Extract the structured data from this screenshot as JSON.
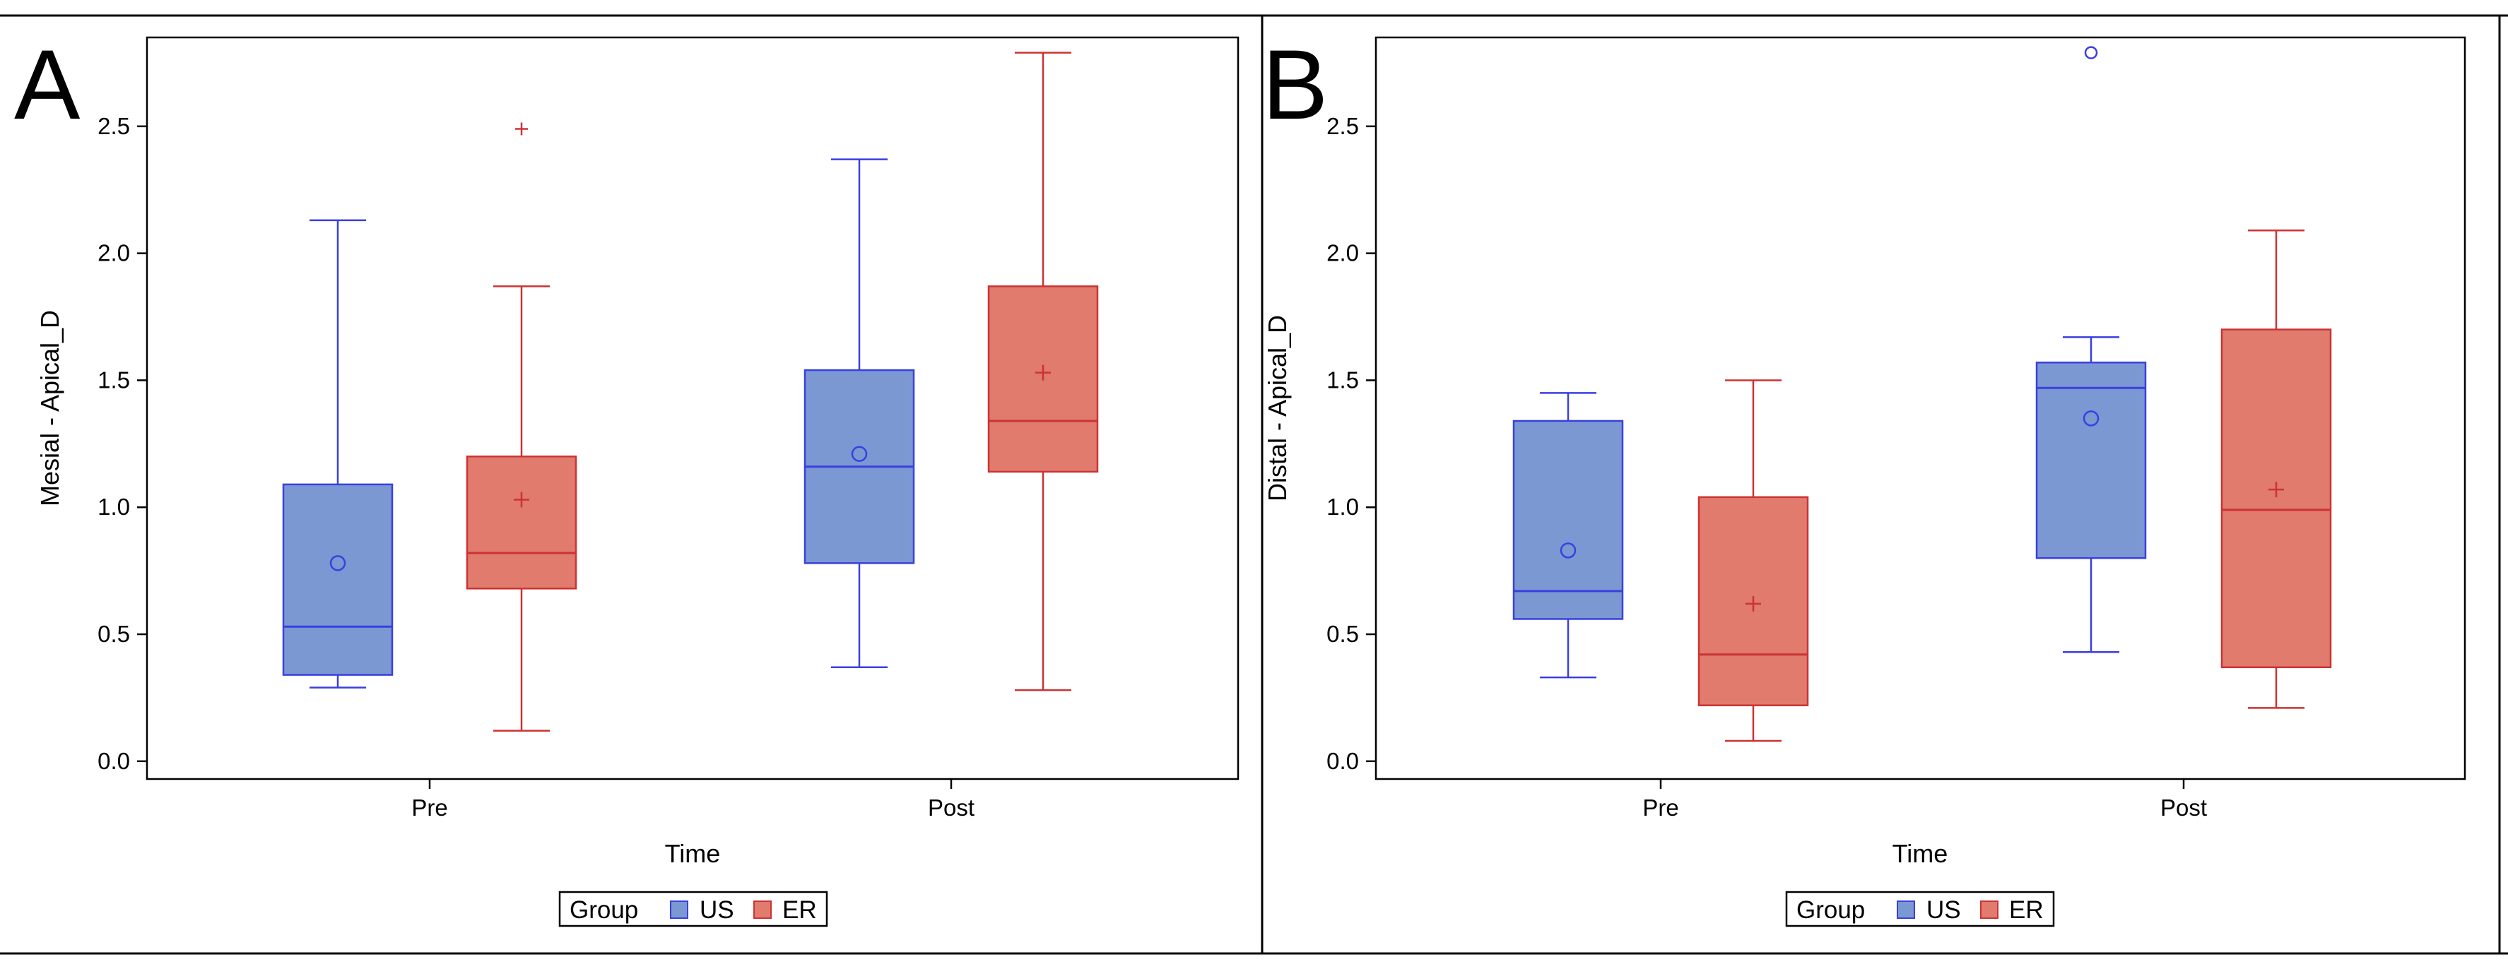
{
  "colors": {
    "US": "#3a3fe0",
    "US_fill": "#7b98d2",
    "ER": "#cc3333",
    "ER_fill": "#e07b6d"
  },
  "panel_labels": [
    "A",
    "B"
  ],
  "legend": {
    "title": "Group",
    "items": [
      "US",
      "ER"
    ]
  },
  "chart_data": [
    {
      "type": "boxplot",
      "panel": "A",
      "xlabel": "Time",
      "ylabel": "Mesial - Apical_D",
      "categories": [
        "Pre",
        "Post"
      ],
      "ylim": [
        -0.07,
        2.85
      ],
      "yticks": [
        "0.0",
        "0.5",
        "1.0",
        "1.5",
        "2.0",
        "2.5"
      ],
      "series": [
        {
          "name": "US",
          "boxes": [
            {
              "q1": 0.34,
              "median": 0.53,
              "q3": 1.09,
              "whisker_low": 0.29,
              "whisker_high": 2.13,
              "mean": 0.78,
              "outliers": []
            },
            {
              "q1": 0.78,
              "median": 1.16,
              "q3": 1.54,
              "whisker_low": 0.37,
              "whisker_high": 2.37,
              "mean": 1.21,
              "outliers": []
            }
          ]
        },
        {
          "name": "ER",
          "boxes": [
            {
              "q1": 0.68,
              "median": 0.82,
              "q3": 1.2,
              "whisker_low": 0.12,
              "whisker_high": 1.87,
              "mean": 1.03,
              "outliers": [
                2.49
              ]
            },
            {
              "q1": 1.14,
              "median": 1.34,
              "q3": 1.87,
              "whisker_low": 0.28,
              "whisker_high": 2.79,
              "mean": 1.53,
              "outliers": []
            }
          ]
        }
      ]
    },
    {
      "type": "boxplot",
      "panel": "B",
      "xlabel": "Time",
      "ylabel": "Distal - Apical_D",
      "categories": [
        "Pre",
        "Post"
      ],
      "ylim": [
        -0.07,
        2.85
      ],
      "yticks": [
        "0.0",
        "0.5",
        "1.0",
        "1.5",
        "2.0",
        "2.5"
      ],
      "series": [
        {
          "name": "US",
          "boxes": [
            {
              "q1": 0.56,
              "median": 0.67,
              "q3": 1.34,
              "whisker_low": 0.33,
              "whisker_high": 1.45,
              "mean": 0.83,
              "outliers": []
            },
            {
              "q1": 0.8,
              "median": 1.47,
              "q3": 1.57,
              "whisker_low": 0.43,
              "whisker_high": 1.67,
              "mean": 1.35,
              "outliers": [
                2.79
              ]
            }
          ]
        },
        {
          "name": "ER",
          "boxes": [
            {
              "q1": 0.22,
              "median": 0.42,
              "q3": 1.04,
              "whisker_low": 0.08,
              "whisker_high": 1.5,
              "mean": 0.62,
              "outliers": []
            },
            {
              "q1": 0.37,
              "median": 0.99,
              "q3": 1.7,
              "whisker_low": 0.21,
              "whisker_high": 2.09,
              "mean": 1.07,
              "outliers": []
            }
          ]
        }
      ]
    }
  ]
}
